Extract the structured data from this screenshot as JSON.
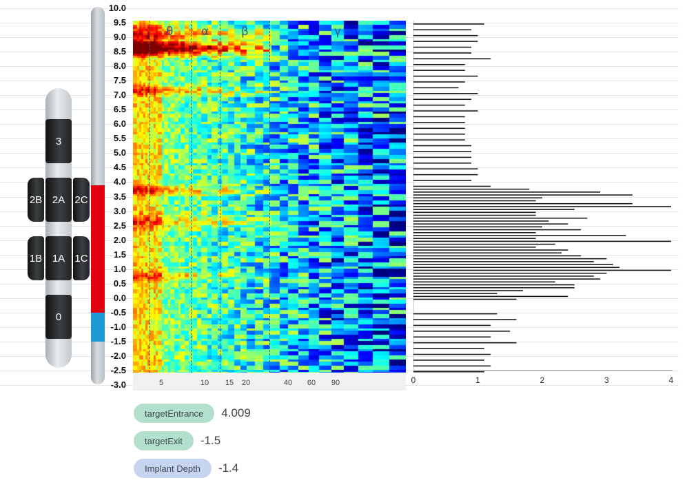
{
  "depth_axis": {
    "ticks": [
      "10.0",
      "9.5",
      "9.0",
      "8.5",
      "8.0",
      "7.5",
      "7.0",
      "6.5",
      "6.0",
      "5.5",
      "5.0",
      "4.5",
      "4.0",
      "3.5",
      "3.0",
      "2.5",
      "2.0",
      "1.5",
      "1.0",
      "0.5",
      "0.0",
      "-0.5",
      "-1.0",
      "-1.5",
      "-2.0",
      "-2.5",
      "-3.0"
    ],
    "range": [
      -3.0,
      10.0
    ],
    "target_segment": {
      "from": -0.5,
      "to": 3.9,
      "color": "#e2000f"
    },
    "exit_segment": {
      "from": -1.5,
      "to": -0.5,
      "color": "#1e9bd7"
    }
  },
  "lead": {
    "contacts": [
      {
        "id": "3",
        "label": "3"
      },
      {
        "id": "2B",
        "label": "2B"
      },
      {
        "id": "2A",
        "label": "2A"
      },
      {
        "id": "2C",
        "label": "2C"
      },
      {
        "id": "1B",
        "label": "1B"
      },
      {
        "id": "1A",
        "label": "1A"
      },
      {
        "id": "1C",
        "label": "1C"
      },
      {
        "id": "0",
        "label": "0"
      }
    ]
  },
  "spectrogram": {
    "band_labels": [
      "θ",
      "α",
      "β",
      "γ"
    ],
    "freq_ticks": [
      "5",
      "10",
      "15",
      "20",
      "40",
      "60",
      "90"
    ]
  },
  "chart_data": {
    "type": "bar",
    "orientation": "horizontal",
    "xlim": [
      0,
      4
    ],
    "x_ticks": [
      "0",
      "1",
      "2",
      "3",
      "4"
    ],
    "ylim": [
      -2.6,
      9.5
    ],
    "grid": true,
    "depths": [
      9.5,
      9.3,
      9.1,
      8.9,
      8.7,
      8.5,
      8.3,
      8.1,
      7.9,
      7.7,
      7.5,
      7.3,
      7.1,
      6.9,
      6.7,
      6.5,
      6.3,
      6.1,
      5.9,
      5.7,
      5.5,
      5.3,
      5.1,
      4.9,
      4.7,
      4.5,
      4.3,
      4.1,
      3.9,
      3.8,
      3.7,
      3.6,
      3.5,
      3.4,
      3.3,
      3.2,
      3.1,
      3.0,
      2.9,
      2.8,
      2.7,
      2.6,
      2.5,
      2.4,
      2.3,
      2.2,
      2.1,
      2.0,
      1.9,
      1.8,
      1.7,
      1.6,
      1.5,
      1.4,
      1.3,
      1.2,
      1.1,
      1.0,
      0.9,
      0.8,
      0.7,
      0.6,
      0.5,
      0.4,
      0.3,
      0.2,
      0.1,
      0.0,
      -0.5,
      -0.7,
      -0.9,
      -1.1,
      -1.3,
      -1.5,
      -1.7,
      -1.9,
      -2.1,
      -2.3,
      -2.5
    ],
    "values": [
      1.1,
      0.9,
      1.0,
      1.0,
      0.9,
      0.9,
      1.2,
      0.8,
      0.8,
      1.0,
      0.8,
      0.7,
      1.0,
      0.9,
      0.8,
      1.0,
      0.8,
      0.8,
      0.8,
      0.8,
      0.8,
      0.9,
      0.9,
      0.9,
      0.9,
      1.0,
      1.0,
      0.9,
      1.2,
      1.8,
      2.9,
      3.4,
      2.0,
      1.9,
      3.4,
      4.0,
      2.5,
      1.9,
      1.9,
      2.7,
      2.1,
      2.4,
      2.0,
      2.6,
      1.9,
      3.3,
      1.9,
      4.0,
      2.2,
      1.9,
      2.4,
      2.3,
      2.6,
      3.0,
      2.8,
      3.1,
      3.2,
      4.0,
      3.0,
      2.8,
      2.9,
      2.2,
      2.5,
      2.5,
      1.7,
      1.3,
      2.4,
      1.6,
      1.3,
      1.6,
      1.2,
      1.5,
      1.2,
      1.6,
      1.1,
      1.2,
      1.1,
      1.2,
      1.1
    ]
  },
  "params": [
    {
      "key": "targetEntrance",
      "label": "targetEntrance",
      "value": "4.009",
      "color": "#b2e0cc"
    },
    {
      "key": "targetExit",
      "label": "targetExit",
      "value": "-1.5",
      "color": "#b2e0cc"
    },
    {
      "key": "implantDepth",
      "label": "Implant Depth",
      "value": "-1.4",
      "color": "#c7d4f0"
    }
  ]
}
